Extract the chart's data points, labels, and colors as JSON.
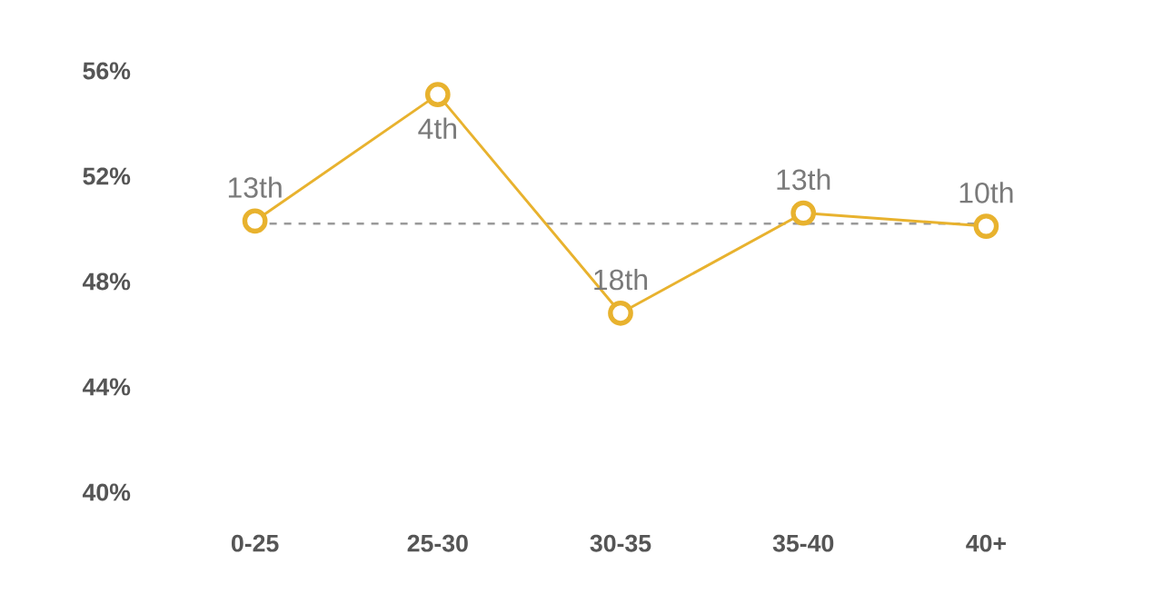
{
  "chart_data": {
    "type": "line",
    "categories": [
      "0-25",
      "25-30",
      "30-35",
      "35-40",
      "40+"
    ],
    "series": [
      {
        "color": "#e8b22e",
        "values": [
          50.3,
          55.1,
          46.8,
          50.6,
          50.1
        ]
      }
    ],
    "ylim": [
      40,
      56
    ],
    "yticks": [
      {
        "value": 40,
        "label": "40%"
      },
      {
        "value": 44,
        "label": "44%"
      },
      {
        "value": 48,
        "label": "48%"
      },
      {
        "value": 52,
        "label": "52%"
      },
      {
        "value": 56,
        "label": "56%"
      }
    ],
    "marker": "circle",
    "line_style": "solid",
    "grid": false,
    "ref_lines": [
      {
        "axis": "y",
        "value": 50.2,
        "color": "#999999",
        "line_style": "dashed"
      }
    ],
    "annotations": [
      {
        "text": "13th",
        "x": "0-25",
        "y": 50.3
      },
      {
        "text": "4th",
        "x": "25-30",
        "y": 55.1
      },
      {
        "text": "18th",
        "x": "30-35",
        "y": 46.8
      },
      {
        "text": "13th",
        "x": "35-40",
        "y": 50.6
      },
      {
        "text": "10th",
        "x": "40+",
        "y": 50.1
      }
    ]
  }
}
